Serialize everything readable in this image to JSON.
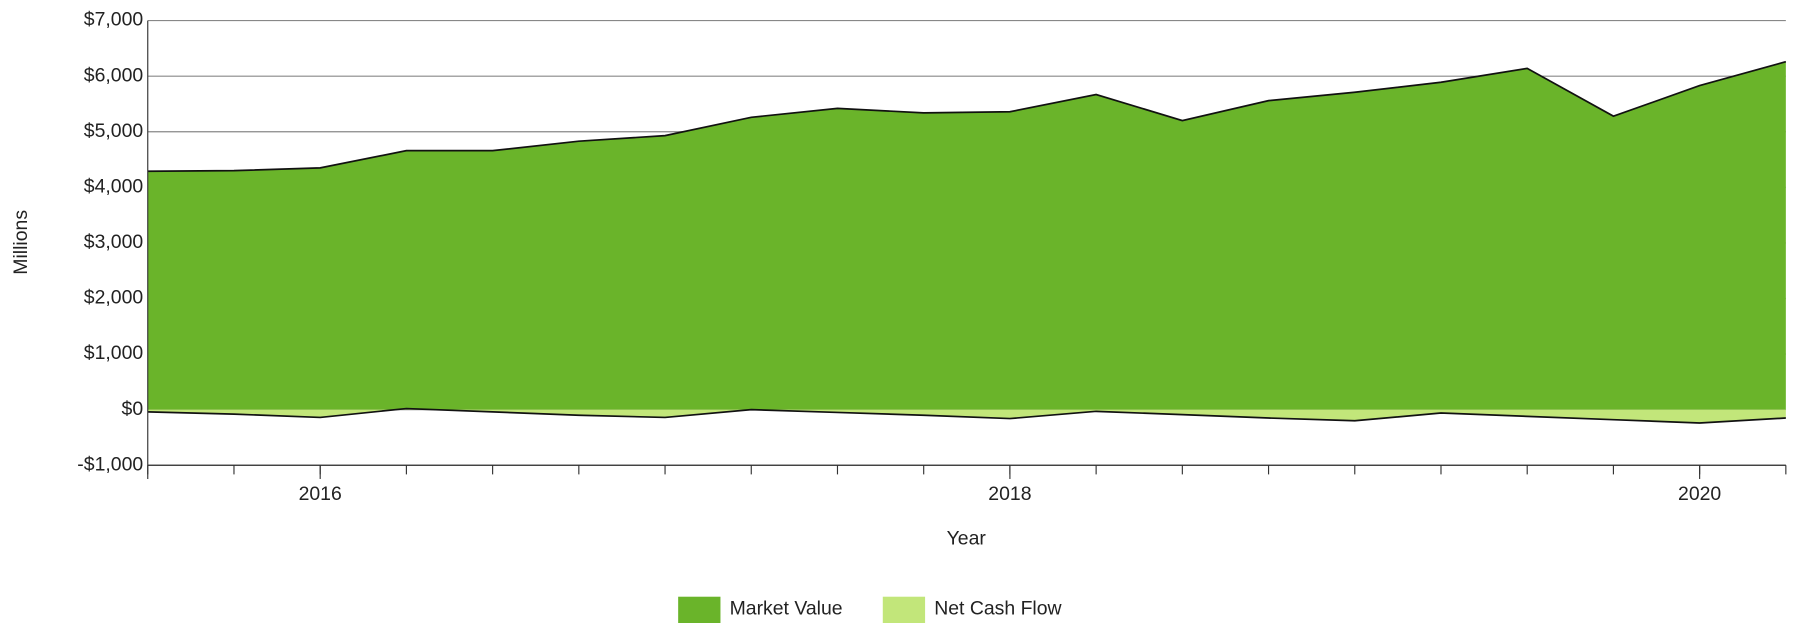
{
  "chart_data": {
    "type": "area",
    "x_label": "Year",
    "y_label": "Millions",
    "x": [
      2015.5,
      2015.75,
      2016,
      2016.25,
      2016.5,
      2016.75,
      2017,
      2017.25,
      2017.5,
      2017.75,
      2018,
      2018.25,
      2018.5,
      2018.75,
      2019,
      2019.25,
      2019.5,
      2019.75,
      2020,
      2020.25
    ],
    "series": [
      {
        "name": "Market Value",
        "color": "#6ab42a",
        "values": [
          4290,
          4300,
          4350,
          4660,
          4660,
          4830,
          4930,
          5260,
          5420,
          5340,
          5360,
          5670,
          5200,
          5560,
          5710,
          5890,
          6140,
          5280,
          5830,
          6260
        ]
      },
      {
        "name": "Net Cash Flow",
        "color": "#c2e67a",
        "values": [
          -40,
          -80,
          -140,
          20,
          -40,
          -100,
          -140,
          0,
          -50,
          -100,
          -160,
          -30,
          -90,
          -150,
          -200,
          -60,
          -120,
          -180,
          -240,
          -150
        ]
      }
    ],
    "xlim": [
      2015.5,
      2020.25
    ],
    "xticks": [
      2016,
      2018,
      2020
    ],
    "ylim": [
      -1000,
      7000
    ],
    "yticks": [
      {
        "value": -1000,
        "label": "-$1,000"
      },
      {
        "value": 0,
        "label": "$0"
      },
      {
        "value": 1000,
        "label": "$1,000"
      },
      {
        "value": 2000,
        "label": "$2,000"
      },
      {
        "value": 3000,
        "label": "$3,000"
      },
      {
        "value": 4000,
        "label": "$4,000"
      },
      {
        "value": 5000,
        "label": "$5,000"
      },
      {
        "value": 6000,
        "label": "$6,000"
      },
      {
        "value": 7000,
        "label": "$7,000"
      }
    ],
    "grid": true,
    "legend": "bottom"
  }
}
